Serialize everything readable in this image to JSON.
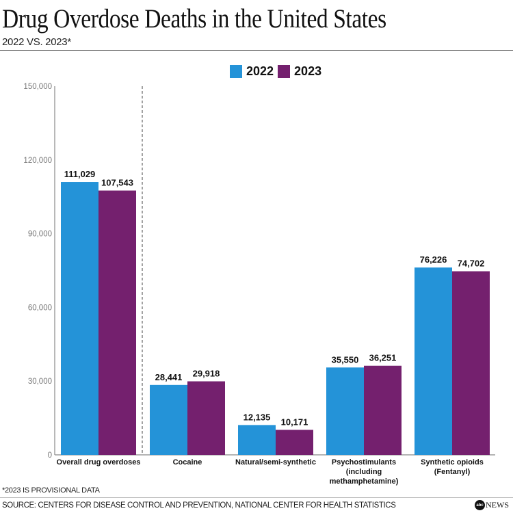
{
  "header": {
    "title": "Drug Overdose Deaths in the United States",
    "subtitle": "2022 VS. 2023*"
  },
  "colors": {
    "series_2022": "#2493d8",
    "series_2023": "#74206e",
    "axis": "#888888"
  },
  "chart_data": {
    "type": "bar",
    "title": "Drug Overdose Deaths in the United States",
    "subtitle": "2022 VS. 2023*",
    "xlabel": "",
    "ylabel": "",
    "ylim": [
      0,
      150000
    ],
    "yticks": [
      0,
      30000,
      60000,
      90000,
      120000,
      150000
    ],
    "ytick_labels": [
      "0",
      "30,000",
      "60,000",
      "90,000",
      "120,000",
      "150,000"
    ],
    "grid": false,
    "legend_position": "top-center",
    "categories": [
      [
        "Overall drug overdoses"
      ],
      [
        "Cocaine"
      ],
      [
        "Natural/semi-synthetic"
      ],
      [
        "Psychostimulants",
        "(including",
        "methamphetamine)"
      ],
      [
        "Synthetic opioids",
        "(Fentanyl)"
      ]
    ],
    "series": [
      {
        "name": "2022",
        "color": "#2493d8",
        "values": [
          111029,
          28441,
          12135,
          35550,
          76226
        ],
        "labels": [
          "111,029",
          "28,441",
          "12,135",
          "35,550",
          "76,226"
        ]
      },
      {
        "name": "2023",
        "color": "#74206e",
        "values": [
          107543,
          29918,
          10171,
          36251,
          74702
        ],
        "labels": [
          "107,543",
          "29,918",
          "10,171",
          "36,251",
          "74,702"
        ]
      }
    ],
    "annotations": [
      "dashed separator between Overall drug overdoses and the drug categories"
    ]
  },
  "legend": {
    "items": [
      {
        "label": "2022"
      },
      {
        "label": "2023"
      }
    ]
  },
  "footer": {
    "footnote": "*2023 IS PROVISIONAL DATA",
    "source": "SOURCE: CENTERS FOR DISEASE CONTROL AND PREVENTION, NATIONAL CENTER FOR HEALTH STATISTICS",
    "logo_mark": "abc",
    "logo_text": "NEWS"
  }
}
